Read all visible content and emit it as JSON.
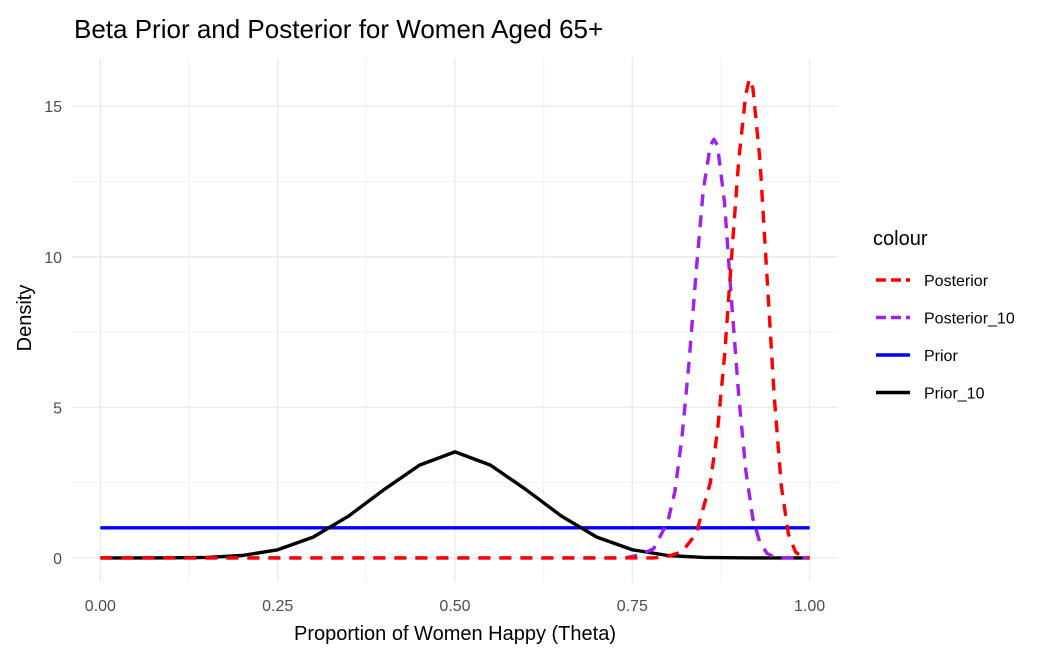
{
  "chart_data": {
    "type": "line",
    "title": "Beta Prior and Posterior for Women Aged 65+",
    "xlabel": "Proportion of Women Happy (Theta)",
    "ylabel": "Density",
    "xlim": [
      -0.04,
      1.04
    ],
    "ylim": [
      -0.8,
      16.6
    ],
    "x_ticks": [
      0,
      0.25,
      0.5,
      0.75,
      1
    ],
    "x_tick_labels": [
      "0.00",
      "0.25",
      "0.50",
      "0.75",
      "1.00"
    ],
    "y_ticks": [
      0,
      5,
      10,
      15
    ],
    "y_tick_labels": [
      "0",
      "5",
      "10",
      "15"
    ],
    "grid": true,
    "legend": {
      "title": "colour",
      "position": "right",
      "entries": [
        {
          "label": "Posterior",
          "color": "#ff0000",
          "dashed": true
        },
        {
          "label": "Posterior_10",
          "color": "#a020f0",
          "dashed": true
        },
        {
          "label": "Prior",
          "color": "#0000ff",
          "dashed": false
        },
        {
          "label": "Prior_10",
          "color": "#000000",
          "dashed": false
        }
      ]
    },
    "series": [
      {
        "name": "Posterior",
        "color": "#ff0000",
        "dashed": true,
        "x": [
          0.0,
          0.78,
          0.8,
          0.82,
          0.84,
          0.86,
          0.87,
          0.88,
          0.89,
          0.9,
          0.91,
          0.915,
          0.92,
          0.93,
          0.94,
          0.95,
          0.96,
          0.97,
          0.98,
          0.99,
          1.0
        ],
        "y": [
          0,
          0,
          0.05,
          0.2,
          0.8,
          2.5,
          4.2,
          6.7,
          10.0,
          13.2,
          15.4,
          15.9,
          15.6,
          13.2,
          9.3,
          5.4,
          2.4,
          0.8,
          0.2,
          0.02,
          0
        ]
      },
      {
        "name": "Posterior_10",
        "color": "#a020f0",
        "dashed": true,
        "x": [
          0.0,
          0.74,
          0.76,
          0.78,
          0.8,
          0.81,
          0.82,
          0.83,
          0.84,
          0.85,
          0.86,
          0.865,
          0.87,
          0.88,
          0.89,
          0.9,
          0.91,
          0.92,
          0.93,
          0.94,
          0.95,
          0.96,
          1.0
        ],
        "y": [
          0,
          0,
          0.1,
          0.3,
          1.2,
          2.2,
          4.0,
          6.5,
          9.5,
          12.2,
          13.7,
          13.9,
          13.7,
          11.8,
          8.5,
          5.4,
          2.9,
          1.3,
          0.5,
          0.15,
          0.03,
          0,
          0
        ]
      },
      {
        "name": "Prior",
        "color": "#0000ff",
        "dashed": false,
        "x": [
          0,
          1
        ],
        "y": [
          1,
          1
        ]
      },
      {
        "name": "Prior_10",
        "color": "#000000",
        "dashed": false,
        "x": [
          0.0,
          0.05,
          0.1,
          0.15,
          0.2,
          0.25,
          0.3,
          0.35,
          0.4,
          0.45,
          0.5,
          0.55,
          0.6,
          0.65,
          0.7,
          0.75,
          0.8,
          0.85,
          0.9,
          0.95,
          1.0
        ],
        "y": [
          0,
          0.0,
          0.002,
          0.015,
          0.08,
          0.27,
          0.69,
          1.39,
          2.27,
          3.08,
          3.52,
          3.08,
          2.27,
          1.39,
          0.69,
          0.27,
          0.08,
          0.015,
          0.002,
          0.0,
          0
        ]
      }
    ]
  }
}
